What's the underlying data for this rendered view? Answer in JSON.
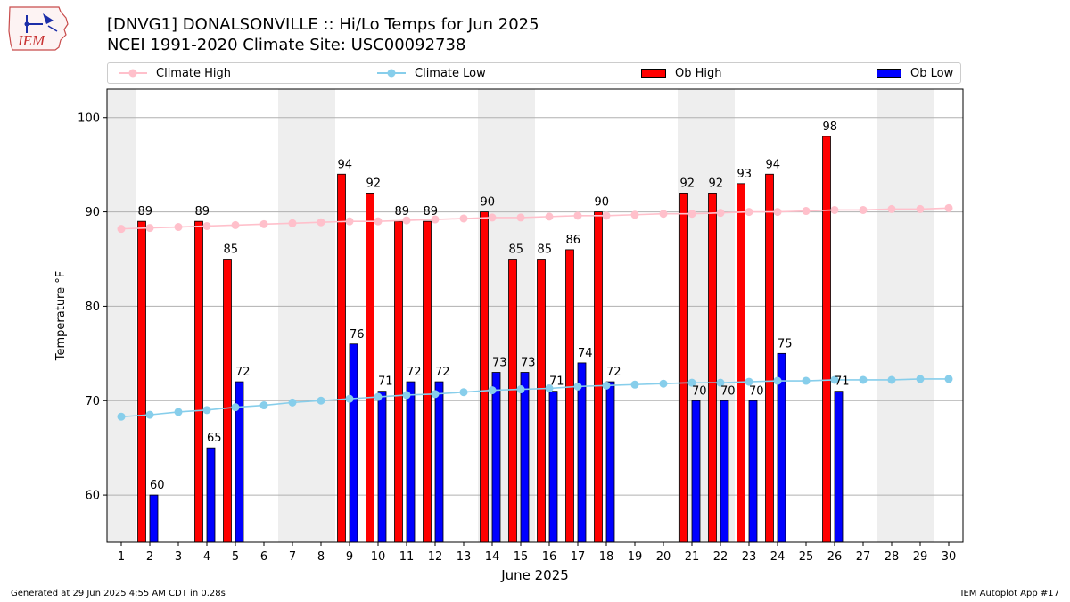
{
  "title": {
    "line1": "[DNVG1] DONALSONVILLE :: Hi/Lo Temps for Jun 2025",
    "line2": "NCEI 1991-2020 Climate Site: USC00092738"
  },
  "logo": {
    "text": "IEM",
    "icon": "iem-iowa-logo-icon"
  },
  "legend": {
    "climate_high": "Climate High",
    "climate_low": "Climate Low",
    "ob_high": "Ob High",
    "ob_low": "Ob Low"
  },
  "footer": {
    "left": "Generated at 29 Jun 2025 4:55 AM CDT in 0.28s",
    "right": "IEM Autoplot App #17"
  },
  "colors": {
    "climate_high": "#ffc0cb",
    "climate_low": "#87ceeb",
    "ob_high": "#ff0000",
    "ob_low": "#0000ff",
    "weekend_shade": "#eeeeee",
    "grid": "#b0b0b0"
  },
  "chart_data": {
    "type": "bar",
    "xlabel": "June 2025",
    "ylabel": "Temperature °F",
    "ylim": [
      55,
      103
    ],
    "yticks": [
      60,
      70,
      80,
      90,
      100
    ],
    "grid": "horizontal",
    "legend_position": "top",
    "categories": [
      1,
      2,
      3,
      4,
      5,
      6,
      7,
      8,
      9,
      10,
      11,
      12,
      13,
      14,
      15,
      16,
      17,
      18,
      19,
      20,
      21,
      22,
      23,
      24,
      25,
      26,
      27,
      28,
      29,
      30
    ],
    "weekend_days": [
      1,
      7,
      8,
      14,
      15,
      21,
      22,
      28,
      29
    ],
    "series": [
      {
        "name": "Climate High",
        "type": "line",
        "values": [
          88.2,
          88.3,
          88.4,
          88.5,
          88.6,
          88.7,
          88.8,
          88.9,
          89.0,
          89.0,
          89.1,
          89.2,
          89.3,
          89.4,
          89.4,
          89.5,
          89.6,
          89.6,
          89.7,
          89.8,
          89.8,
          89.9,
          90.0,
          90.0,
          90.1,
          90.2,
          90.2,
          90.3,
          90.3,
          90.4
        ]
      },
      {
        "name": "Climate Low",
        "type": "line",
        "values": [
          68.3,
          68.5,
          68.8,
          69.0,
          69.3,
          69.5,
          69.8,
          70.0,
          70.2,
          70.4,
          70.6,
          70.7,
          70.9,
          71.1,
          71.2,
          71.3,
          71.5,
          71.6,
          71.7,
          71.8,
          71.9,
          71.9,
          72.0,
          72.1,
          72.1,
          72.2,
          72.2,
          72.2,
          72.3,
          72.3
        ]
      },
      {
        "name": "Ob High",
        "type": "bar",
        "values": [
          null,
          89,
          null,
          89,
          85,
          null,
          null,
          null,
          94,
          92,
          89,
          89,
          null,
          90,
          85,
          85,
          86,
          90,
          null,
          null,
          92,
          92,
          93,
          94,
          null,
          98,
          null,
          null,
          null,
          null
        ]
      },
      {
        "name": "Ob Low",
        "type": "bar",
        "values": [
          null,
          60,
          null,
          65,
          72,
          null,
          null,
          null,
          76,
          71,
          72,
          72,
          null,
          73,
          73,
          71,
          74,
          72,
          null,
          null,
          70,
          70,
          70,
          75,
          null,
          71,
          null,
          null,
          null,
          null
        ]
      }
    ]
  }
}
